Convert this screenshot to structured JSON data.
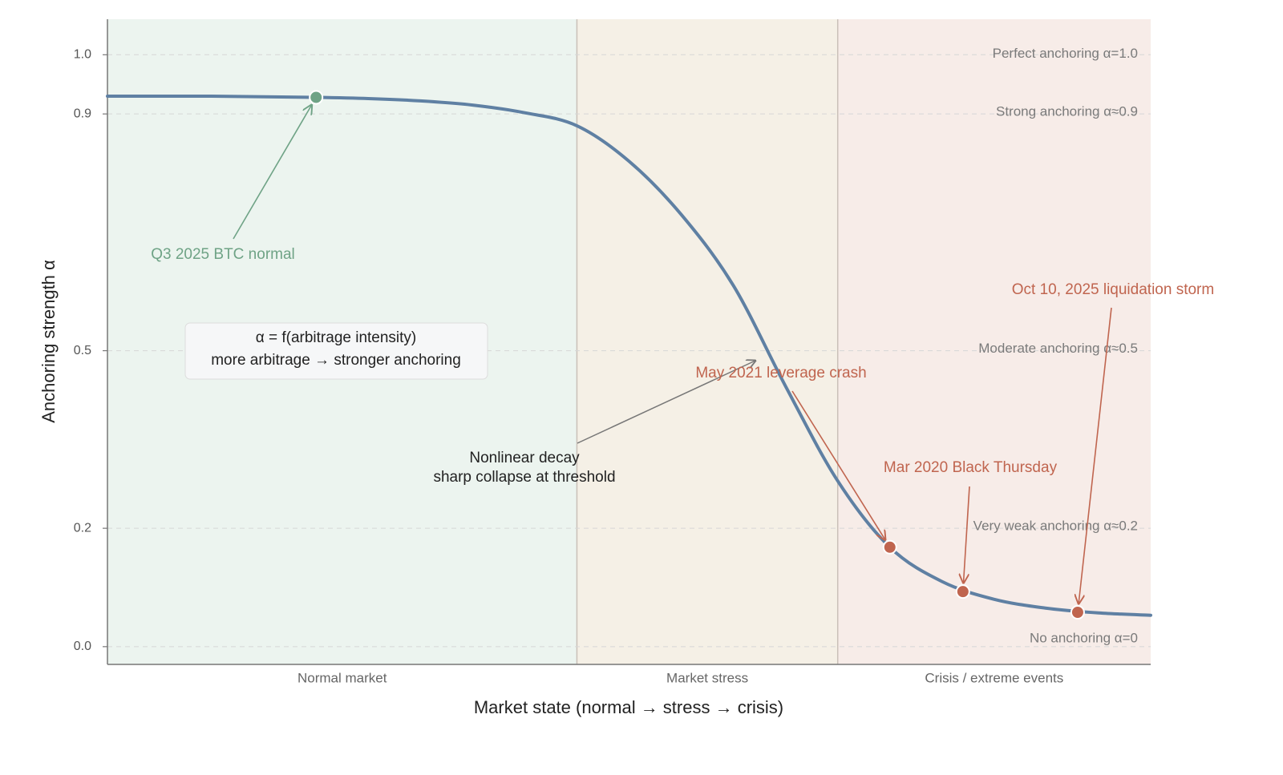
{
  "chart_data": {
    "type": "line",
    "xlabel": "Market state (normal → stress → crisis)",
    "ylabel": "Anchoring strength α",
    "xlim": [
      0,
      10
    ],
    "ylim": [
      -0.03,
      1.06
    ],
    "yticks": [
      0.0,
      0.2,
      0.5,
      0.9,
      1.0
    ],
    "x": [
      0,
      0.5,
      1,
      1.5,
      2,
      2.5,
      3,
      3.5,
      4,
      4.5,
      5,
      5.5,
      6,
      6.5,
      7,
      7.5,
      8,
      8.5,
      9,
      9.5,
      10
    ],
    "values": [
      0.93,
      0.93,
      0.93,
      0.929,
      0.928,
      0.926,
      0.922,
      0.915,
      0.902,
      0.88,
      0.82,
      0.73,
      0.61,
      0.44,
      0.28,
      0.168,
      0.11,
      0.08,
      0.065,
      0.057,
      0.053
    ],
    "color": "#5f80a3",
    "regions": [
      {
        "label": "Normal market",
        "start": 0,
        "end": 4.5,
        "color": "#ecf4ef"
      },
      {
        "label": "Market stress",
        "start": 4.5,
        "end": 7.0,
        "color": "#f5f0e6"
      },
      {
        "label": "Crisis / extreme events",
        "start": 7.0,
        "end": 10,
        "color": "#f7ece8"
      }
    ],
    "reference_lines": [
      {
        "value": 1.0,
        "label": "Perfect anchoring α=1.0"
      },
      {
        "value": 0.9,
        "label": "Strong anchoring α≈0.9"
      },
      {
        "value": 0.5,
        "label": "Moderate anchoring α≈0.5"
      },
      {
        "value": 0.2,
        "label": "Very weak anchoring α≈0.2"
      },
      {
        "value": 0.0,
        "label": "No anchoring α=0"
      }
    ],
    "events": [
      {
        "label": "Q3 2025 BTC normal",
        "x": 2.0,
        "y": 0.928,
        "color": "#6fa386"
      },
      {
        "label": "May 2021 leverage crash",
        "x": 7.5,
        "y": 0.168,
        "color": "#c0654f"
      },
      {
        "label": "Mar 2020 Black Thursday",
        "x": 8.2,
        "y": 0.093,
        "color": "#c0654f"
      },
      {
        "label": "Oct 10, 2025 liquidation storm",
        "x": 9.3,
        "y": 0.058,
        "color": "#c0654f"
      }
    ],
    "annotation": [
      "Nonlinear decay",
      "sharp collapse at threshold"
    ],
    "formula_box": [
      "α = f(arbitrage intensity)",
      "more arbitrage → stronger anchoring"
    ]
  }
}
